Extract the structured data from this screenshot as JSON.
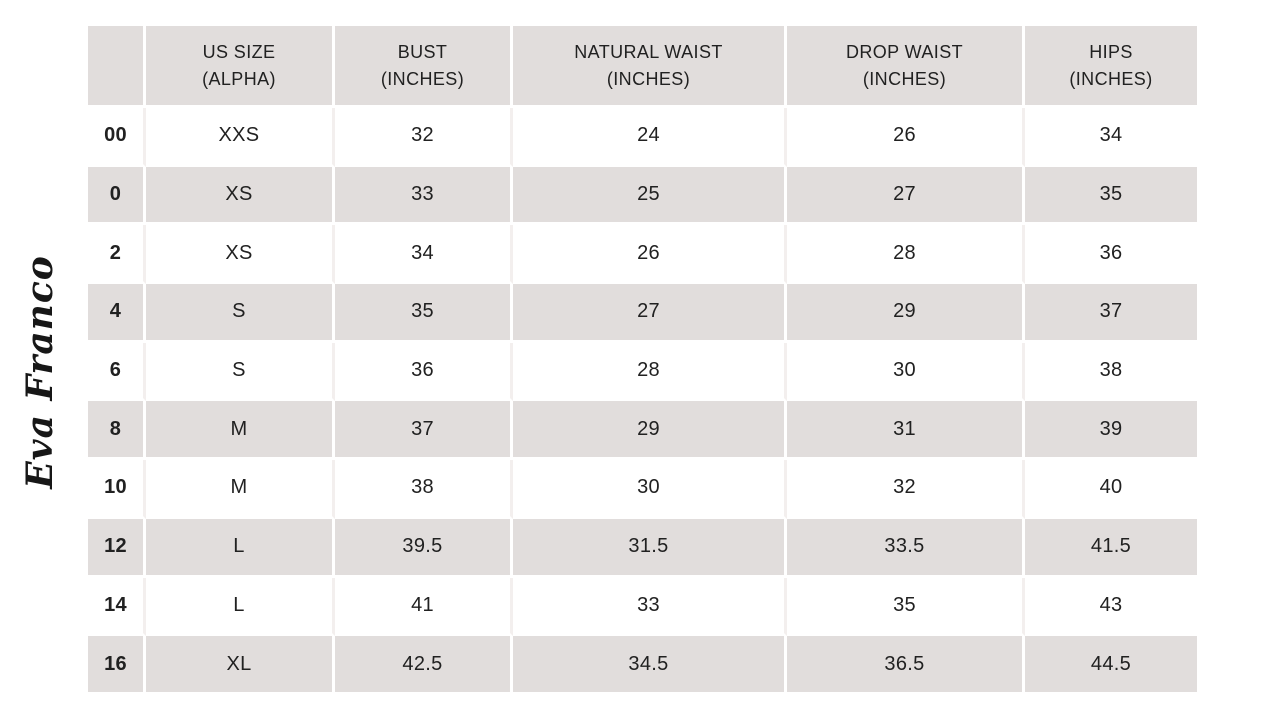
{
  "brand": {
    "logo_text": "Eva Franco"
  },
  "size_chart": {
    "columns": [
      "",
      "US SIZE\n(ALPHA)",
      "BUST\n(INCHES)",
      "NATURAL WAIST\n(INCHES)",
      "DROP WAIST\n(INCHES)",
      "HIPS\n(INCHES)"
    ],
    "rows": [
      [
        "00",
        "XXS",
        "32",
        "24",
        "26",
        "34"
      ],
      [
        "0",
        "XS",
        "33",
        "25",
        "27",
        "35"
      ],
      [
        "2",
        "XS",
        "34",
        "26",
        "28",
        "36"
      ],
      [
        "4",
        "S",
        "35",
        "27",
        "29",
        "37"
      ],
      [
        "6",
        "S",
        "36",
        "28",
        "30",
        "38"
      ],
      [
        "8",
        "M",
        "37",
        "29",
        "31",
        "39"
      ],
      [
        "10",
        "M",
        "38",
        "30",
        "32",
        "40"
      ],
      [
        "12",
        "L",
        "39.5",
        "31.5",
        "33.5",
        "41.5"
      ],
      [
        "14",
        "L",
        "41",
        "33",
        "35",
        "43"
      ],
      [
        "16",
        "XL",
        "42.5",
        "34.5",
        "36.5",
        "44.5"
      ]
    ]
  },
  "colors": {
    "row_alt_background": "#e1dddc",
    "row_background": "#ffffff",
    "text": "#212121",
    "logo_ink": "#171717"
  }
}
